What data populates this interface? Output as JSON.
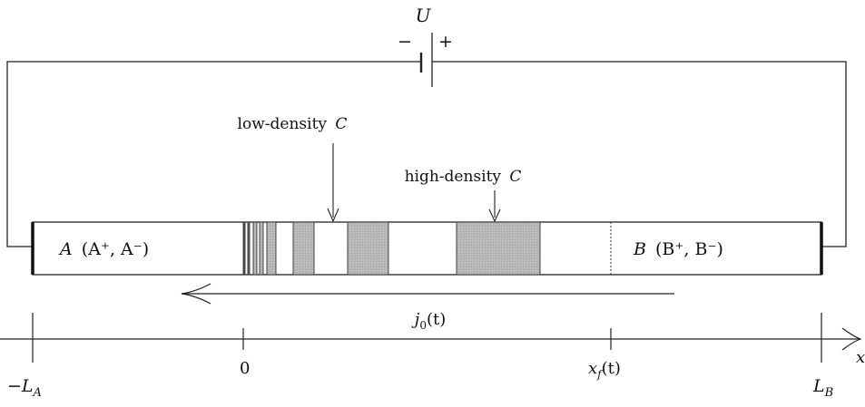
{
  "battery": {
    "label": "U",
    "minus": "−",
    "plus": "+"
  },
  "labels": {
    "low_density": "low-density",
    "high_density": "high-density",
    "C": "C"
  },
  "regions": {
    "A_main": "A",
    "A_ions": "(A⁺, A⁻)",
    "B_main": "B",
    "B_ions": "(B⁺, B⁻)"
  },
  "current": {
    "j": "j",
    "sub": "0",
    "arg": "(t)"
  },
  "axis": {
    "x_label": "x",
    "tick_minus_LA_prefix": "−L",
    "tick_minus_LA_sub": "A",
    "tick_zero": "0",
    "tick_xf": "x",
    "tick_xf_sub": "f",
    "tick_xf_arg": "(t)",
    "tick_LB": "L",
    "tick_LB_sub": "B"
  },
  "colors": {
    "line": "#222222",
    "band_fill": "#b5b5b5",
    "background": "#ffffff"
  }
}
